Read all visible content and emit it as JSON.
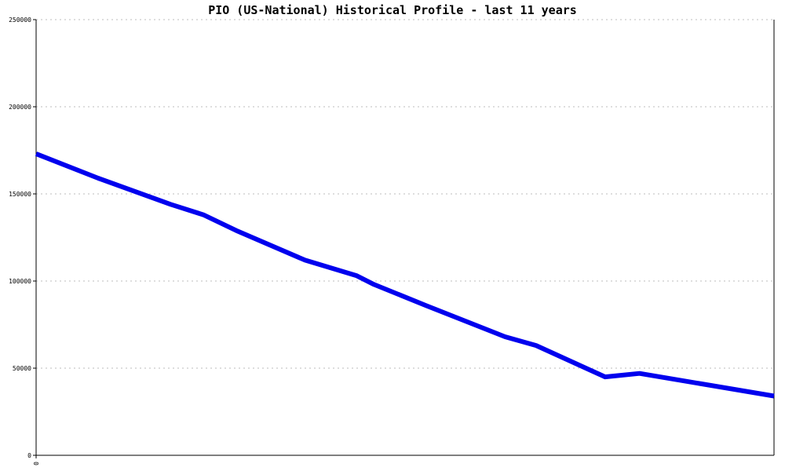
{
  "chart_data": {
    "type": "line",
    "title": "PIO (US-National) Historical Profile - last 11 years",
    "xlabel": "",
    "ylabel": "",
    "ylim": [
      0,
      250000
    ],
    "y_ticks": [
      "0",
      "50000",
      "100000",
      "150000",
      "200000",
      "250000"
    ],
    "x_ticks": [
      "0"
    ],
    "x_range": [
      0,
      21.4
    ],
    "grid": true,
    "series": [
      {
        "color": "#0000ee",
        "x": [
          0,
          1.8,
          3.9,
          4.85,
          5.8,
          7.8,
          9.3,
          9.8,
          11.3,
          13.6,
          14.5,
          16.5,
          17.5,
          21.4
        ],
        "y": [
          173000,
          159000,
          144000,
          138000,
          129000,
          112000,
          103000,
          98000,
          86000,
          68000,
          63000,
          45000,
          47000,
          34000
        ]
      }
    ]
  }
}
